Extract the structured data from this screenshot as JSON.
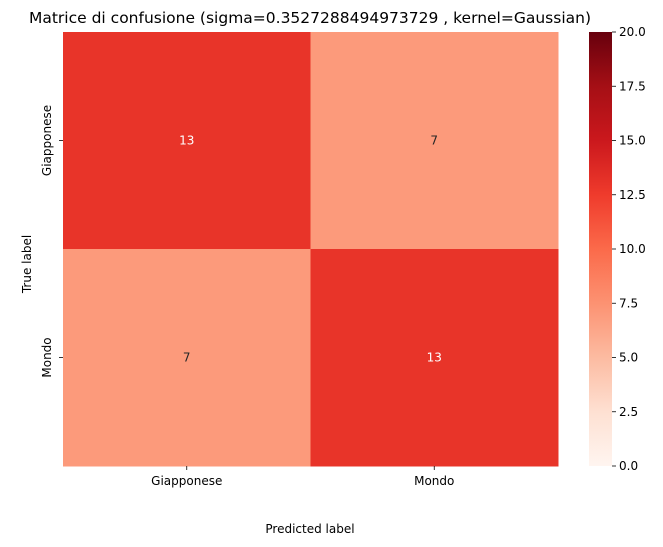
{
  "chart_data": {
    "type": "heatmap",
    "title": "Matrice di confusione (sigma=0.3527288494973729 , kernel=Gaussian)",
    "xlabel": "Predicted label",
    "ylabel": "True label",
    "x_categories": [
      "Giapponese",
      "Mondo"
    ],
    "y_categories": [
      "Giapponese",
      "Mondo"
    ],
    "values": [
      [
        13,
        7
      ],
      [
        7,
        13
      ]
    ],
    "colormap": "Reds",
    "vmin": 0,
    "vmax": 20,
    "colorbar_ticks": [
      "0.0",
      "2.5",
      "5.0",
      "7.5",
      "10.0",
      "12.5",
      "15.0",
      "17.5",
      "20.0"
    ],
    "annotations": true,
    "grid": false
  }
}
